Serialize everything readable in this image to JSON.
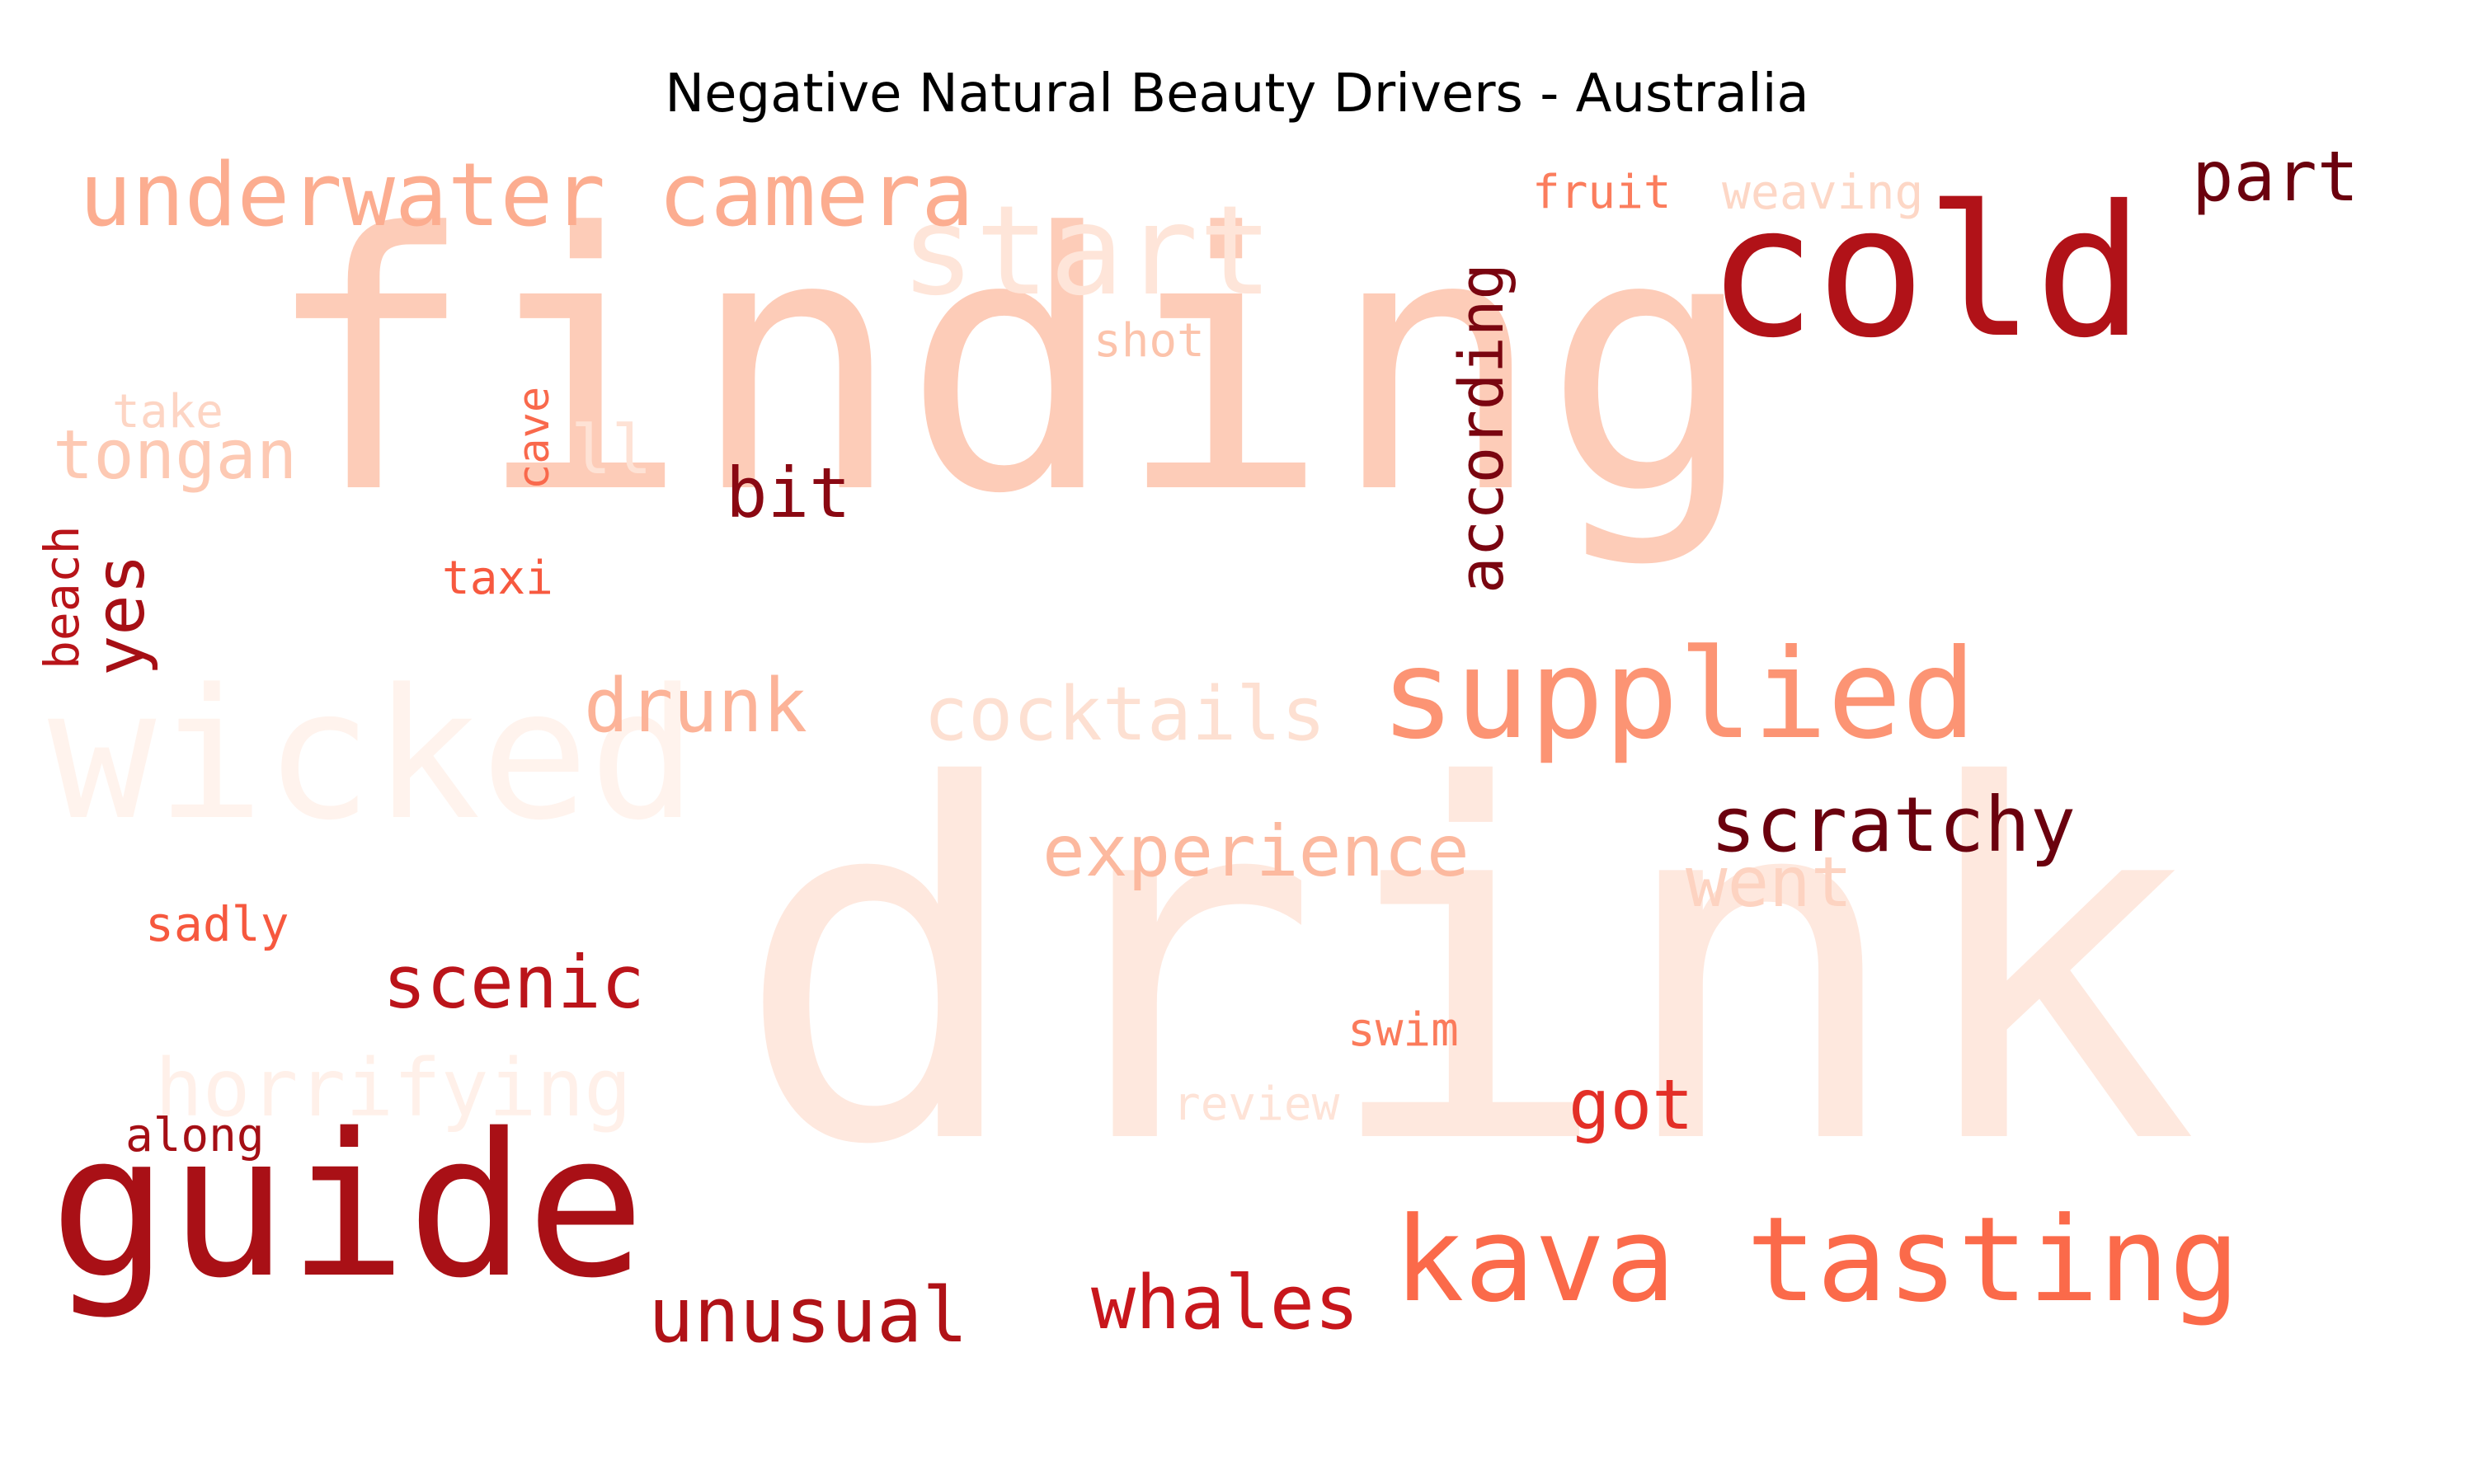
{
  "title": "Negative Natural Beauty Drivers - Australia",
  "palette": "Reds",
  "words": [
    {
      "text": "finding",
      "color": "#fdccb8"
    },
    {
      "text": "drink",
      "color": "#fee8de"
    },
    {
      "text": "wicked",
      "color": "#fff3ed"
    },
    {
      "text": "guide",
      "color": "#a91016"
    },
    {
      "text": "cold",
      "color": "#b11218"
    },
    {
      "text": "kava tasting",
      "color": "#fb6a4a"
    },
    {
      "text": "supplied",
      "color": "#fc9474"
    },
    {
      "text": "start",
      "color": "#fee5d9"
    },
    {
      "text": "underwater camera",
      "color": "#fcad90"
    },
    {
      "text": "scratchy",
      "color": "#6b010e"
    },
    {
      "text": "experience",
      "color": "#fcb99f"
    },
    {
      "text": "according",
      "color": "#7a0510"
    },
    {
      "text": "cocktails",
      "color": "#fde0d2"
    },
    {
      "text": "horrifying",
      "color": "#fff0e9"
    },
    {
      "text": "whales",
      "color": "#c8171c"
    },
    {
      "text": "unusual",
      "color": "#b01217"
    },
    {
      "text": "scenic",
      "color": "#bb141a"
    },
    {
      "text": "drunk",
      "color": "#fcb398"
    },
    {
      "text": "went",
      "color": "#fdd3c1"
    },
    {
      "text": "got",
      "color": "#e32f27"
    },
    {
      "text": "part",
      "color": "#6b010e"
    },
    {
      "text": "bit",
      "color": "#8a0812"
    },
    {
      "text": "tongan",
      "color": "#fdc9b3"
    },
    {
      "text": "ll",
      "color": "#fee2d5"
    },
    {
      "text": "yes",
      "color": "#a60f15"
    },
    {
      "text": "fruit",
      "color": "#fb7d5d"
    },
    {
      "text": "weaving",
      "color": "#fdd7c6"
    },
    {
      "text": "cave",
      "color": "#f9694c"
    },
    {
      "text": "beach",
      "color": "#b81419"
    },
    {
      "text": "taxi",
      "color": "#f7593f"
    },
    {
      "text": "shot",
      "color": "#fcc3ab"
    },
    {
      "text": "take",
      "color": "#fdd5c4"
    },
    {
      "text": "sadly",
      "color": "#f6583e"
    },
    {
      "text": "swim",
      "color": "#fb7b5b"
    },
    {
      "text": "review",
      "color": "#fee3d7"
    },
    {
      "text": "along",
      "color": "#a50f15"
    }
  ]
}
